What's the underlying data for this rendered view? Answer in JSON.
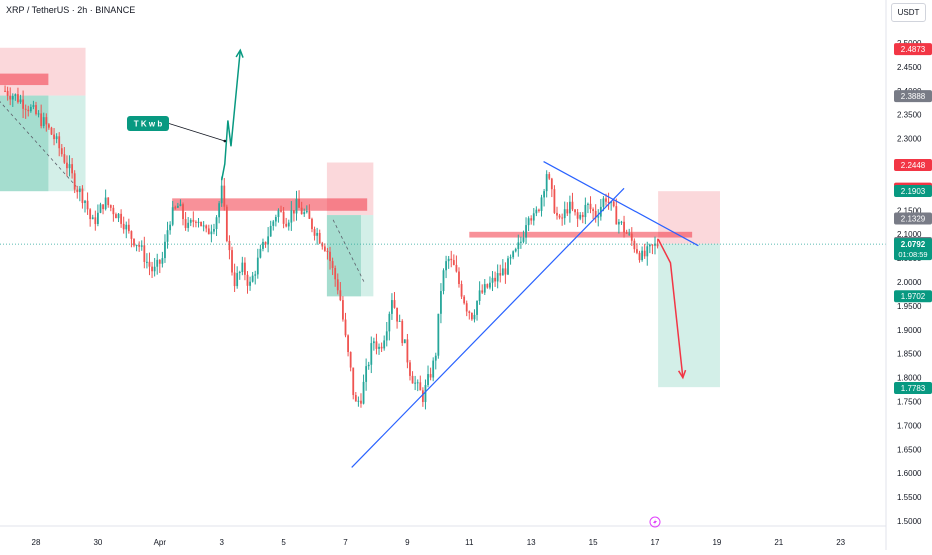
{
  "header": {
    "title": "XRP / TetherUS · 2h · BINANCE",
    "currency": "USDT"
  },
  "colors": {
    "up": "#26a69a",
    "down": "#ef5350",
    "trendline": "#2962ff",
    "arrow_up": "#089981",
    "arrow_down": "#f23645",
    "short_zone_top": "#f7b8be",
    "target_zone": "#b5e4d9"
  },
  "chart_data": {
    "type": "candlestick",
    "symbol": "XRP / TetherUS",
    "interval": "2h",
    "exchange": "BINANCE",
    "ylim": [
      1.49,
      2.54
    ],
    "y_ticks": [
      "2.5000",
      "2.4500",
      "2.4000",
      "2.3500",
      "2.3000",
      "2.2500",
      "2.2000",
      "2.1500",
      "2.1000",
      "2.0500",
      "2.0000",
      "1.9500",
      "1.9000",
      "1.8500",
      "1.8000",
      "1.7500",
      "1.7000",
      "1.6500",
      "1.6000",
      "1.5500",
      "1.5000"
    ],
    "x_ticks": [
      {
        "label": "28",
        "day": 28
      },
      {
        "label": "30",
        "day": 30
      },
      {
        "label": "Apr",
        "day": 32
      },
      {
        "label": "3",
        "day": 34
      },
      {
        "label": "5",
        "day": 36
      },
      {
        "label": "7",
        "day": 38
      },
      {
        "label": "9",
        "day": 40
      },
      {
        "label": "11",
        "day": 42
      },
      {
        "label": "13",
        "day": 44
      },
      {
        "label": "15",
        "day": 46
      },
      {
        "label": "17",
        "day": 48
      },
      {
        "label": "19",
        "day": 50
      },
      {
        "label": "21",
        "day": 52
      },
      {
        "label": "23",
        "day": 54
      }
    ],
    "price_path": [
      [
        27.0,
        2.4
      ],
      [
        27.3,
        2.39
      ],
      [
        27.7,
        2.37
      ],
      [
        28.0,
        2.35
      ],
      [
        28.3,
        2.33
      ],
      [
        28.6,
        2.3
      ],
      [
        28.9,
        2.26
      ],
      [
        29.1,
        2.23
      ],
      [
        29.3,
        2.2
      ],
      [
        29.6,
        2.17
      ],
      [
        29.8,
        2.12
      ],
      [
        30.0,
        2.14
      ],
      [
        30.2,
        2.17
      ],
      [
        30.5,
        2.15
      ],
      [
        30.8,
        2.13
      ],
      [
        31.0,
        2.1
      ],
      [
        31.3,
        2.08
      ],
      [
        31.6,
        2.04
      ],
      [
        31.8,
        2.02
      ],
      [
        32.1,
        2.05
      ],
      [
        32.3,
        2.13
      ],
      [
        32.6,
        2.16
      ],
      [
        32.9,
        2.11
      ],
      [
        33.2,
        2.14
      ],
      [
        33.5,
        2.1
      ],
      [
        33.8,
        2.13
      ],
      [
        34.0,
        2.19
      ],
      [
        34.2,
        2.08
      ],
      [
        34.4,
        2.0
      ],
      [
        34.7,
        2.03
      ],
      [
        34.9,
        1.99
      ],
      [
        35.2,
        2.05
      ],
      [
        35.5,
        2.1
      ],
      [
        35.8,
        2.15
      ],
      [
        36.1,
        2.13
      ],
      [
        36.4,
        2.16
      ],
      [
        36.7,
        2.14
      ],
      [
        37.0,
        2.11
      ],
      [
        37.2,
        2.09
      ],
      [
        37.4,
        2.07
      ],
      [
        37.6,
        2.02
      ],
      [
        37.8,
        1.98
      ],
      [
        38.0,
        1.88
      ],
      [
        38.2,
        1.8
      ],
      [
        38.3,
        1.74
      ],
      [
        38.5,
        1.76
      ],
      [
        38.7,
        1.82
      ],
      [
        38.9,
        1.88
      ],
      [
        39.1,
        1.86
      ],
      [
        39.3,
        1.9
      ],
      [
        39.5,
        1.97
      ],
      [
        39.7,
        1.92
      ],
      [
        39.9,
        1.87
      ],
      [
        40.1,
        1.81
      ],
      [
        40.3,
        1.78
      ],
      [
        40.5,
        1.76
      ],
      [
        40.7,
        1.8
      ],
      [
        40.9,
        1.84
      ],
      [
        41.1,
        2.0
      ],
      [
        41.3,
        2.05
      ],
      [
        41.5,
        2.03
      ],
      [
        41.7,
        1.99
      ],
      [
        41.9,
        1.95
      ],
      [
        42.1,
        1.93
      ],
      [
        42.3,
        1.97
      ],
      [
        42.6,
        1.99
      ],
      [
        42.9,
        2.01
      ],
      [
        43.2,
        2.03
      ],
      [
        43.5,
        2.06
      ],
      [
        43.7,
        2.09
      ],
      [
        43.9,
        2.15
      ],
      [
        44.1,
        2.13
      ],
      [
        44.3,
        2.17
      ],
      [
        44.5,
        2.23
      ],
      [
        44.7,
        2.17
      ],
      [
        44.9,
        2.12
      ],
      [
        45.2,
        2.16
      ],
      [
        45.5,
        2.13
      ],
      [
        45.8,
        2.16
      ],
      [
        46.1,
        2.14
      ],
      [
        46.4,
        2.18
      ],
      [
        46.7,
        2.14
      ],
      [
        47.0,
        2.11
      ],
      [
        47.3,
        2.08
      ],
      [
        47.6,
        2.05
      ],
      [
        47.9,
        2.07
      ],
      [
        48.1,
        2.08
      ]
    ],
    "key_levels": {
      "resistance_top": 2.4873,
      "level_23888": 2.3888,
      "short_entry_zone_top": 2.2448,
      "short_stop": 2.1954,
      "short_entry": 2.1903,
      "level_21329": 2.1329,
      "level_20816": 2.0816,
      "current_price": 2.0792,
      "support_19702": 1.9702,
      "target": 1.7783
    },
    "price_labels": [
      {
        "value": "2.4873",
        "price": 2.4873,
        "color": "#f23645"
      },
      {
        "value": "2.3888",
        "price": 2.3888,
        "color": "#787b86"
      },
      {
        "value": "2.2448",
        "price": 2.2448,
        "color": "#f23645"
      },
      {
        "value": "2.1954",
        "price": 2.1954,
        "color": "#f23645"
      },
      {
        "value": "2.1903",
        "price": 2.1903,
        "color": "#089981"
      },
      {
        "value": "2.1329",
        "price": 2.1329,
        "color": "#787b86"
      },
      {
        "value": "2.0816",
        "price": 2.0816,
        "color": "#787b86"
      },
      {
        "value": "1.9702",
        "price": 1.9702,
        "color": "#089981"
      },
      {
        "value": "1.7783",
        "price": 1.7783,
        "color": "#089981"
      }
    ],
    "current_price_label": {
      "value": "2.0792",
      "countdown": "01:08:59",
      "price": 2.0792,
      "color": "#089981"
    },
    "annotation_label": "T K w b",
    "zones": [
      {
        "kind": "short-risk",
        "day_start": 26.5,
        "day_end": 29.6,
        "p_top": 2.49,
        "p_bottom": 2.39
      },
      {
        "kind": "short-reward",
        "day_start": 26.5,
        "day_end": 29.6,
        "p_top": 2.39,
        "p_bottom": 2.19
      },
      {
        "kind": "short-risk",
        "day_start": 37.4,
        "day_end": 38.9,
        "p_top": 2.25,
        "p_bottom": 2.14
      },
      {
        "kind": "short-reward",
        "day_start": 37.4,
        "day_end": 38.9,
        "p_top": 2.14,
        "p_bottom": 1.97
      },
      {
        "kind": "short-risk",
        "day_start": 48.1,
        "day_end": 50.1,
        "p_top": 2.19,
        "p_bottom": 2.08
      },
      {
        "kind": "short-reward",
        "day_start": 48.1,
        "day_end": 50.1,
        "p_top": 2.08,
        "p_bottom": 1.78
      }
    ],
    "bands": [
      {
        "day_start": 26.5,
        "day_end": 28.4,
        "price": 2.424,
        "half": 0.012
      },
      {
        "day_start": 32.4,
        "day_end": 38.7,
        "price": 2.162,
        "half": 0.013
      },
      {
        "day_start": 42.0,
        "day_end": 49.2,
        "price": 2.099,
        "half": 0.006
      }
    ],
    "trendlines": [
      {
        "name": "ascending-support",
        "points": [
          [
            38.2,
            1.612
          ],
          [
            47.0,
            2.196
          ]
        ]
      },
      {
        "name": "descending-resistance",
        "points": [
          [
            44.4,
            2.252
          ],
          [
            49.4,
            2.076
          ]
        ]
      }
    ],
    "arrows": [
      {
        "name": "up-arrow",
        "color": "#089981",
        "points": [
          [
            34.0,
            2.213
          ],
          [
            34.1,
            2.247
          ],
          [
            34.2,
            2.338
          ],
          [
            34.3,
            2.284
          ],
          [
            34.6,
            2.485
          ]
        ]
      },
      {
        "name": "down-arrow",
        "color": "#f23645",
        "points": [
          [
            48.1,
            2.09
          ],
          [
            48.5,
            2.04
          ],
          [
            48.9,
            1.8
          ]
        ]
      }
    ],
    "annotation_anchor": [
      34.1,
      2.295
    ]
  }
}
